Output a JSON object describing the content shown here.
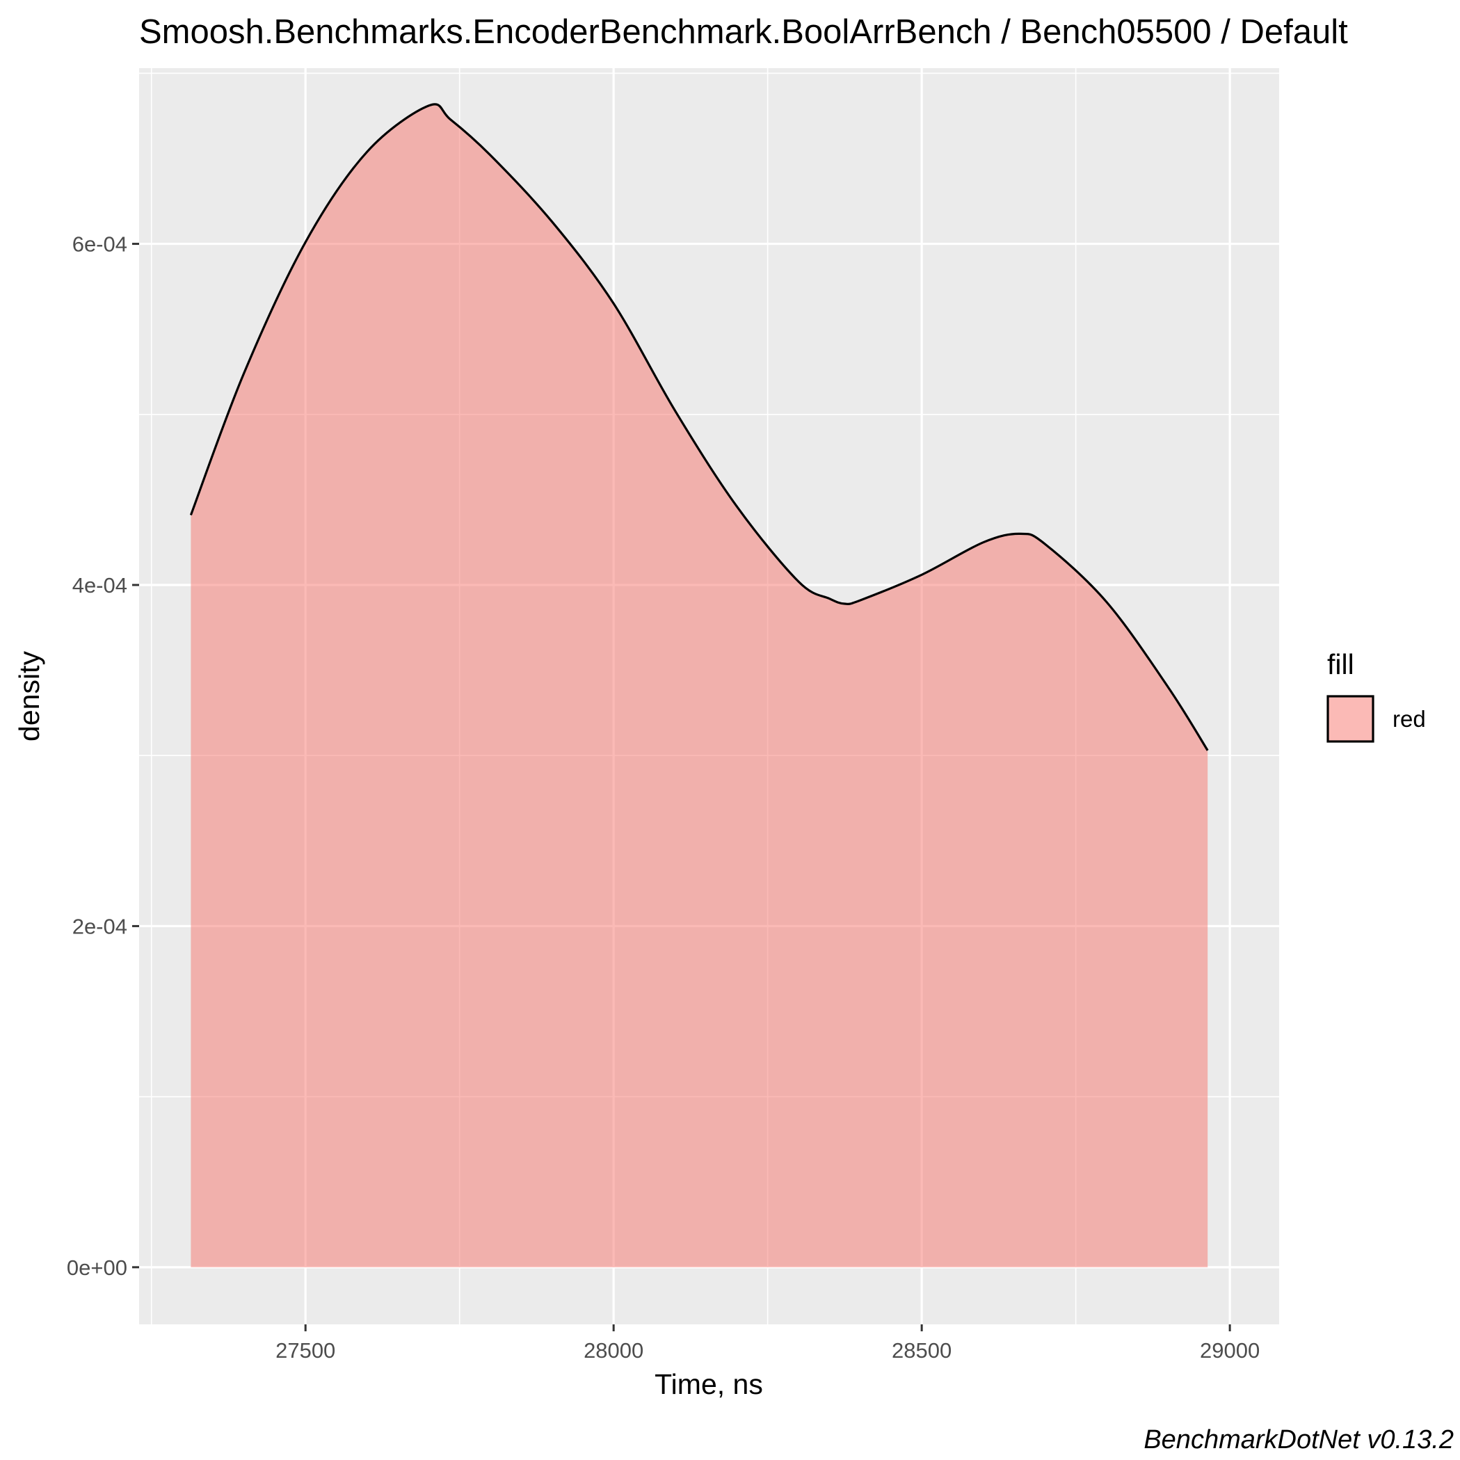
{
  "chart_data": {
    "type": "area",
    "title": "Smoosh.Benchmarks.EncoderBenchmark.BoolArrBench / Bench05500 / Default",
    "xlabel": "Time, ns",
    "ylabel": "density",
    "caption": "BenchmarkDotNet v0.13.2",
    "xlim": [
      27230,
      29080
    ],
    "ylim": [
      -3.35e-05,
      0.000703
    ],
    "x_ticks": [
      {
        "value": 27500,
        "label": "27500"
      },
      {
        "value": 28000,
        "label": "28000"
      },
      {
        "value": 28500,
        "label": "28500"
      },
      {
        "value": 29000,
        "label": "29000"
      }
    ],
    "y_ticks": [
      {
        "value": 0,
        "label": "0e+00"
      },
      {
        "value": 0.0002,
        "label": "2e-04"
      },
      {
        "value": 0.0004,
        "label": "4e-04"
      },
      {
        "value": 0.0006,
        "label": "6e-04"
      }
    ],
    "grid": true,
    "legend": {
      "position": "right",
      "title": "fill",
      "items": [
        {
          "label": "red",
          "color": "#F8766D"
        }
      ]
    },
    "colors": {
      "panel_background": "#EBEBEB",
      "grid": "#FFFFFF",
      "fill": "#F8766D",
      "fill_opacity": 0.5,
      "line": "#000000"
    },
    "series": [
      {
        "x": [
          27314,
          27400,
          27500,
          27600,
          27700,
          27735,
          27800,
          27900,
          28000,
          28100,
          28200,
          28300,
          28350,
          28375,
          28400,
          28500,
          28600,
          28660,
          28700,
          28800,
          28900,
          28964
        ],
        "values": [
          0.000441,
          0.000524,
          0.000601,
          0.000654,
          0.000681,
          0.000673,
          0.000652,
          0.000613,
          0.000565,
          0.000502,
          0.000446,
          0.000402,
          0.000392,
          0.000389,
          0.000391,
          0.000406,
          0.000425,
          0.00043,
          0.000424,
          0.00039,
          0.00034,
          0.000303
        ]
      }
    ]
  }
}
